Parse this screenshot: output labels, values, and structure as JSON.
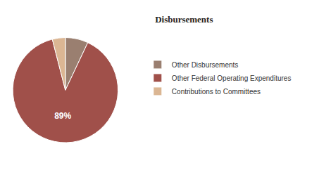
{
  "chart_data": {
    "type": "pie",
    "title": "Disbursements",
    "categories": [
      "Other Disbursements",
      "Other Federal Operating Expenditures",
      "Contributions to Committees"
    ],
    "values": [
      7,
      89,
      4
    ],
    "value_labels": [
      null,
      "89%",
      null
    ],
    "colors": [
      "#9a7f70",
      "#a0504a",
      "#dbb693"
    ],
    "data_labels": true,
    "legend": "right"
  }
}
